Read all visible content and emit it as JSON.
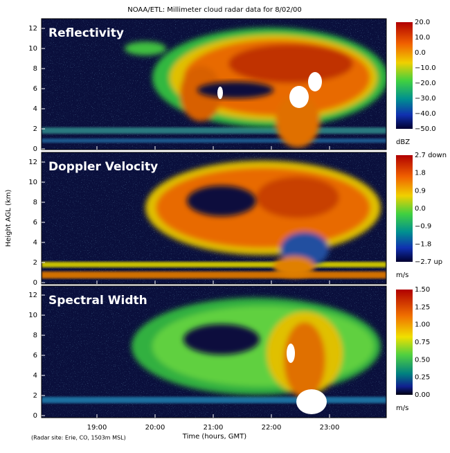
{
  "title": "NOAA/ETL: Millimeter cloud radar data for 8/02/00",
  "y_axis_label": "Height AGL (km)",
  "x_axis_label": "Time (hours, GMT)",
  "x_ticks": [
    "19:00",
    "20:00",
    "21:00",
    "22:00",
    "23:00"
  ],
  "footnote": "(Radar site: Erie, CO, 1503m MSL)",
  "panels": [
    {
      "label": "Reflectivity",
      "y_ticks": [
        0,
        2,
        4,
        6,
        8,
        10,
        12
      ],
      "colorbar": {
        "labels": [
          "20.0",
          "10.0",
          "0.0",
          "−10.0",
          "−20.0",
          "−30.0",
          "−40.0",
          "−50.0"
        ],
        "unit": "dBZ"
      }
    },
    {
      "label": "Doppler Velocity",
      "y_ticks": [
        0,
        2,
        4,
        6,
        8,
        10,
        12
      ],
      "colorbar": {
        "labels": [
          "2.7 down",
          "1.8",
          "0.9",
          "0.0",
          "−0.9",
          "−1.8",
          "−2.7 up"
        ],
        "unit": "m/s"
      }
    },
    {
      "label": "Spectral Width",
      "y_ticks": [
        0,
        2,
        4,
        6,
        8,
        10,
        12
      ],
      "colorbar": {
        "labels": [
          "1.50",
          "1.25",
          "1.00",
          "0.75",
          "0.50",
          "0.25",
          "0.00"
        ],
        "unit": "m/s"
      }
    }
  ]
}
